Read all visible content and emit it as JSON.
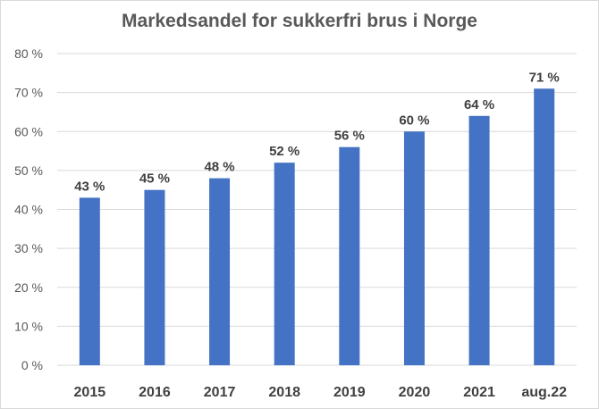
{
  "chart_data": {
    "type": "bar",
    "title": "Markedsandel for sukkerfri brus i Norge",
    "xlabel": "",
    "ylabel": "",
    "categories": [
      "2015",
      "2016",
      "2017",
      "2018",
      "2019",
      "2020",
      "2021",
      "aug.22"
    ],
    "values": [
      43,
      45,
      48,
      52,
      56,
      60,
      64,
      71
    ],
    "data_labels": [
      "43 %",
      "45 %",
      "48 %",
      "52 %",
      "56 %",
      "60 %",
      "64 %",
      "71 %"
    ],
    "ylim": [
      0,
      80
    ],
    "y_ticks": [
      0,
      10,
      20,
      30,
      40,
      50,
      60,
      70,
      80
    ],
    "y_tick_labels": [
      "0 %",
      "10 %",
      "20 %",
      "30 %",
      "40 %",
      "50 %",
      "60 %",
      "70 %",
      "80 %"
    ],
    "grid": true,
    "legend": "none",
    "bar_color": "#4472c4",
    "grid_color": "#d9d9d9"
  }
}
